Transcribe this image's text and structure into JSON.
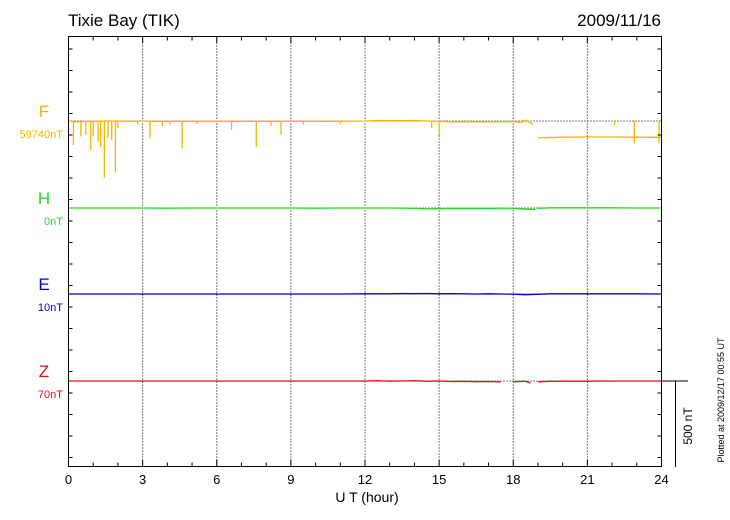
{
  "chart_data": {
    "type": "line",
    "title": "Tixie Bay (TIK)",
    "date": "2009/11/16",
    "xlabel": "U T (hour)",
    "xlim": [
      0,
      24
    ],
    "x_ticks": [
      "0",
      "3",
      "6",
      "9",
      "12",
      "15",
      "18",
      "21",
      "24"
    ],
    "scale_bar": "500 nT",
    "footnote": "Plotted at 2009/12/17 00:55 UT",
    "grid": true,
    "series": [
      {
        "name": "F",
        "baseline_label": "59740nT",
        "color": "#f5b400",
        "points": [
          [
            0,
            0
          ],
          [
            0.3,
            -5
          ],
          [
            0.6,
            -3
          ],
          [
            1,
            -2
          ],
          [
            1.5,
            0
          ],
          [
            2,
            0
          ],
          [
            2.5,
            -2
          ],
          [
            3,
            0
          ],
          [
            3.5,
            -2
          ],
          [
            4,
            -2
          ],
          [
            5,
            -2
          ],
          [
            6,
            -1
          ],
          [
            7,
            -2
          ],
          [
            8,
            -2
          ],
          [
            9,
            -2
          ],
          [
            10,
            -2
          ],
          [
            11,
            -1
          ],
          [
            12,
            0
          ],
          [
            12.5,
            3
          ],
          [
            13,
            2
          ],
          [
            13.5,
            2
          ],
          [
            14,
            3
          ],
          [
            14.5,
            0
          ],
          [
            15,
            -2
          ],
          [
            15.5,
            -5
          ],
          [
            16,
            -4
          ],
          [
            16.5,
            -5
          ],
          [
            17,
            -5
          ],
          [
            17.5,
            -4
          ],
          [
            18,
            -3
          ],
          [
            18.3,
            -8
          ],
          [
            18.5,
            5
          ],
          [
            18.8,
            -20
          ]
        ],
        "points_2": [
          [
            19,
            -98
          ],
          [
            20,
            -94
          ],
          [
            21,
            -93
          ],
          [
            22,
            -93
          ],
          [
            23,
            -94
          ],
          [
            24,
            -95
          ]
        ],
        "spikes": [
          [
            0.2,
            -140
          ],
          [
            0.5,
            -90
          ],
          [
            0.7,
            -80
          ],
          [
            0.9,
            -170
          ],
          [
            1,
            -90
          ],
          [
            1.2,
            -120
          ],
          [
            1.3,
            -150
          ],
          [
            1.45,
            -330
          ],
          [
            1.6,
            -100
          ],
          [
            1.75,
            -110
          ],
          [
            1.9,
            -300
          ],
          [
            2,
            -40
          ],
          [
            2.8,
            -20
          ],
          [
            3.3,
            -100
          ],
          [
            3.8,
            -30
          ],
          [
            4.1,
            -20
          ],
          [
            4.6,
            -160
          ],
          [
            5.2,
            -20
          ],
          [
            6.6,
            -50
          ],
          [
            7.6,
            -150
          ],
          [
            8.2,
            -30
          ],
          [
            8.6,
            -80
          ],
          [
            9.5,
            -20
          ],
          [
            11,
            -20
          ],
          [
            14.7,
            -40
          ],
          [
            15,
            -85
          ],
          [
            22.1,
            -25
          ],
          [
            22.9,
            -130
          ],
          [
            23.9,
            -130
          ]
        ]
      },
      {
        "name": "H",
        "baseline_label": "0nT",
        "color": "#22dd22",
        "points": [
          [
            0,
            0
          ],
          [
            1,
            0
          ],
          [
            2,
            0
          ],
          [
            3,
            0
          ],
          [
            4,
            -1
          ],
          [
            5,
            0
          ],
          [
            6,
            0
          ],
          [
            7,
            0
          ],
          [
            8,
            0
          ],
          [
            9,
            0
          ],
          [
            10,
            -1
          ],
          [
            11,
            0
          ],
          [
            12,
            0
          ],
          [
            13,
            0
          ],
          [
            14,
            -2
          ],
          [
            14.5,
            -6
          ],
          [
            15,
            -4
          ],
          [
            15.5,
            -2
          ],
          [
            16,
            -3
          ],
          [
            16.5,
            -2
          ],
          [
            17,
            -3
          ],
          [
            17.5,
            -1
          ],
          [
            18,
            -2
          ],
          [
            18.5,
            -7
          ],
          [
            18.9,
            -8
          ]
        ],
        "points_2": [
          [
            19,
            -2
          ],
          [
            19.5,
            1
          ],
          [
            20,
            1
          ],
          [
            21,
            1
          ],
          [
            22,
            1
          ],
          [
            23,
            0
          ],
          [
            24,
            0
          ]
        ]
      },
      {
        "name": "E",
        "baseline_label": "10nT",
        "color": "#0000cc",
        "points": [
          [
            0,
            0
          ],
          [
            1,
            0
          ],
          [
            2,
            0
          ],
          [
            3,
            0
          ],
          [
            4,
            0
          ],
          [
            5,
            0
          ],
          [
            6,
            0
          ],
          [
            7,
            0
          ],
          [
            8,
            0
          ],
          [
            9,
            0
          ],
          [
            10,
            0
          ],
          [
            11,
            0
          ],
          [
            12,
            1
          ],
          [
            13,
            1
          ],
          [
            13.5,
            3
          ],
          [
            14,
            2
          ],
          [
            14.5,
            3
          ],
          [
            15,
            1
          ],
          [
            15.5,
            2
          ],
          [
            16,
            1
          ],
          [
            16.5,
            0
          ],
          [
            17,
            1
          ],
          [
            17.5,
            0
          ],
          [
            18,
            -1
          ],
          [
            18.5,
            -4
          ],
          [
            18.9,
            -2
          ],
          [
            19.5,
            1
          ],
          [
            20,
            1
          ],
          [
            21,
            1
          ],
          [
            22,
            1
          ],
          [
            23,
            1
          ],
          [
            24,
            0
          ]
        ]
      },
      {
        "name": "Z",
        "baseline_label": "70nT",
        "color": "#dd1111",
        "points": [
          [
            0,
            0
          ],
          [
            1,
            0
          ],
          [
            2,
            0
          ],
          [
            3,
            0
          ],
          [
            4,
            0
          ],
          [
            5,
            0
          ],
          [
            6,
            0
          ],
          [
            7,
            0
          ],
          [
            8,
            0
          ],
          [
            9,
            0
          ],
          [
            10,
            0
          ],
          [
            11,
            0
          ],
          [
            12,
            0
          ],
          [
            12.5,
            2
          ],
          [
            13,
            -1
          ],
          [
            13.5,
            0
          ],
          [
            14,
            2
          ],
          [
            14.5,
            -2
          ],
          [
            15,
            0
          ],
          [
            15.5,
            -3
          ],
          [
            16,
            -2
          ],
          [
            16.5,
            -4
          ],
          [
            17,
            -3
          ],
          [
            17.5,
            -5
          ]
        ],
        "points_2": [
          [
            18,
            -5
          ],
          [
            18.3,
            -3
          ],
          [
            18.5,
            -2
          ],
          [
            18.7,
            -12
          ]
        ],
        "points_3": [
          [
            19,
            -5
          ],
          [
            19.5,
            -2
          ],
          [
            20,
            -1
          ],
          [
            21,
            -1
          ],
          [
            22,
            0
          ],
          [
            23,
            0
          ],
          [
            24,
            0
          ]
        ]
      }
    ]
  }
}
